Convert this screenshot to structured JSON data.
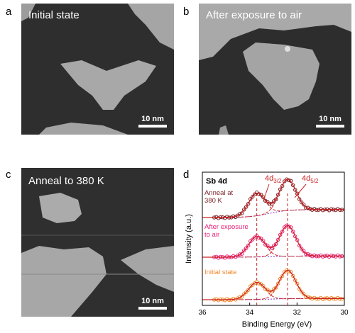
{
  "panels": [
    {
      "letter": "a",
      "label": "Initial state",
      "scale": "10 nm"
    },
    {
      "letter": "b",
      "label": "After exposure to air",
      "scale": "10 nm"
    },
    {
      "letter": "c",
      "label": "Anneal to 380 K",
      "scale": "10 nm"
    },
    {
      "letter": "d"
    }
  ],
  "chart_data": {
    "type": "line",
    "title": "Sb 4d",
    "xlabel": "Binding Energy (eV)",
    "ylabel": "Intensity (a.u.)",
    "xlim": [
      36,
      30
    ],
    "x_reversed": true,
    "xticks": [
      "36",
      "34",
      "32",
      "30"
    ],
    "peak_labels": [
      {
        "text": "4d",
        "sub": "3/2",
        "x": 33.7
      },
      {
        "text": "4d",
        "sub": "5/2",
        "x": 32.4
      }
    ],
    "series": [
      {
        "name": "Anneal at 380 K",
        "label_lines": [
          "Anneal at",
          "380 K"
        ],
        "color": "#7a1f24",
        "baseline": 0.14,
        "amp1": 0.4,
        "amp2": 0.55
      },
      {
        "name": "After exposure to air",
        "label_lines": [
          "After exposure",
          "to air"
        ],
        "color": "#e8227a",
        "baseline": 0.02,
        "amp1": 0.36,
        "amp2": 0.54
      },
      {
        "name": "Initial state",
        "label_lines": [
          "Initial state"
        ],
        "color": "#f0882a",
        "baseline": 0.02,
        "amp1": 0.3,
        "amp2": 0.5
      }
    ],
    "peak_positions": [
      33.7,
      32.4
    ],
    "offsets": [
      1.55,
      0.85,
      0.1
    ],
    "fit_colors": {
      "envelope": "#cc2222",
      "background": "#7b2fbe"
    }
  }
}
